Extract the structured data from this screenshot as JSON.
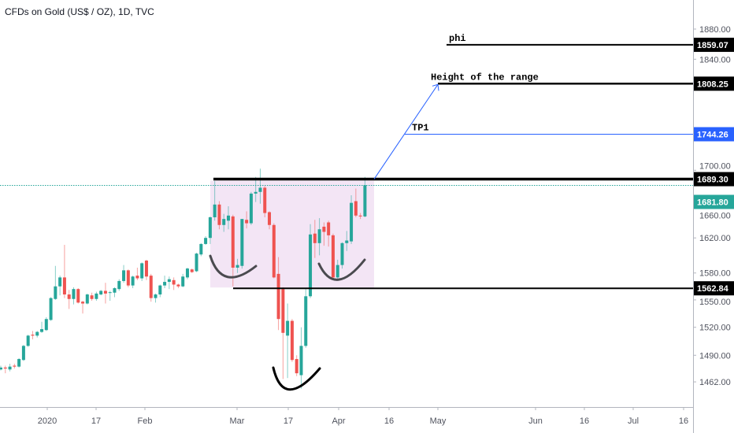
{
  "header": {
    "title": "CFDs on Gold (US$ / OZ), 1D, TVC"
  },
  "colors": {
    "up": "#26a69a",
    "down": "#ef5350",
    "tp1": "#2962ff",
    "range_box": "#f3e5f5",
    "current_price": "#26a69a",
    "level": "#000000",
    "arc_gray": "#4a4a4f"
  },
  "chart_data": {
    "type": "candlestick",
    "title": "CFDs on Gold (US$ / OZ), 1D, TVC",
    "y_scale": "log",
    "ylim": [
      1440,
      1900
    ],
    "y_ticks": [
      "1880.00",
      "1840.00",
      "1700.00",
      "1660.00",
      "1620.00",
      "1580.00",
      "1550.00",
      "1520.00",
      "1490.00",
      "1462.00"
    ],
    "x_ticks": [
      "2020",
      "17",
      "Feb",
      "Mar",
      "17",
      "Apr",
      "16",
      "May",
      "Jun",
      "16",
      "Jul",
      "16"
    ],
    "ohlc": [
      [
        1475,
        1479,
        1474,
        1477
      ],
      [
        1477,
        1479,
        1471,
        1476
      ],
      [
        1475,
        1481,
        1473,
        1478
      ],
      [
        1479,
        1481,
        1476,
        1478
      ],
      [
        1478,
        1487,
        1477,
        1486
      ],
      [
        1485,
        1501,
        1484,
        1500
      ],
      [
        1500,
        1512,
        1499,
        1511
      ],
      [
        1512,
        1516,
        1507,
        1511
      ],
      [
        1511,
        1516,
        1509,
        1515
      ],
      [
        1515,
        1526,
        1514,
        1518
      ],
      [
        1517,
        1531,
        1516,
        1529
      ],
      [
        1528,
        1553,
        1527,
        1552
      ],
      [
        1551,
        1588,
        1550,
        1565
      ],
      [
        1565,
        1577,
        1555,
        1575
      ],
      [
        1575,
        1612,
        1552,
        1556
      ],
      [
        1556,
        1561,
        1540,
        1551
      ],
      [
        1551,
        1564,
        1545,
        1562
      ],
      [
        1562,
        1563,
        1546,
        1547
      ],
      [
        1548,
        1549,
        1535,
        1546
      ],
      [
        1546,
        1557,
        1545,
        1556
      ],
      [
        1555,
        1558,
        1549,
        1551
      ],
      [
        1551,
        1559,
        1549,
        1557
      ],
      [
        1556,
        1561,
        1555,
        1560
      ],
      [
        1560,
        1569,
        1546,
        1557
      ],
      [
        1558,
        1560,
        1549,
        1558.5
      ],
      [
        1558,
        1564,
        1553,
        1563
      ],
      [
        1562,
        1573,
        1560,
        1571
      ],
      [
        1571,
        1589,
        1569,
        1583
      ],
      [
        1583,
        1584,
        1564,
        1566
      ],
      [
        1566,
        1577,
        1563,
        1576
      ],
      [
        1577,
        1586,
        1572,
        1574
      ],
      [
        1574,
        1592,
        1571,
        1591
      ],
      [
        1594,
        1595,
        1572,
        1576
      ],
      [
        1577,
        1579,
        1548,
        1552
      ],
      [
        1552,
        1557,
        1547,
        1556
      ],
      [
        1556,
        1567,
        1553,
        1566
      ],
      [
        1566,
        1577,
        1563,
        1570
      ],
      [
        1570,
        1576,
        1562,
        1573
      ],
      [
        1572,
        1575,
        1561,
        1567
      ],
      [
        1567,
        1568,
        1563,
        1565
      ],
      [
        1565,
        1579,
        1564,
        1576
      ],
      [
        1575,
        1586,
        1573,
        1585
      ],
      [
        1584,
        1585,
        1580,
        1581
      ],
      [
        1582,
        1603,
        1581,
        1602
      ],
      [
        1601,
        1614,
        1599,
        1613
      ],
      [
        1613,
        1622,
        1612,
        1620
      ],
      [
        1620,
        1645,
        1613,
        1644
      ],
      [
        1644,
        1687,
        1640,
        1659
      ],
      [
        1659,
        1663,
        1630,
        1635
      ],
      [
        1635,
        1648,
        1627,
        1642
      ],
      [
        1640,
        1657,
        1630,
        1646
      ],
      [
        1645,
        1647,
        1565,
        1586
      ],
      [
        1586,
        1596,
        1580,
        1589
      ],
      [
        1588,
        1642,
        1585,
        1642
      ],
      [
        1641,
        1651,
        1631,
        1637
      ],
      [
        1637,
        1674,
        1635,
        1672
      ],
      [
        1672,
        1692,
        1662,
        1674
      ],
      [
        1674,
        1702,
        1660,
        1679
      ],
      [
        1679,
        1681,
        1644,
        1649
      ],
      [
        1650,
        1651,
        1630,
        1635
      ],
      [
        1635,
        1637,
        1574,
        1575
      ],
      [
        1579,
        1598,
        1517,
        1529
      ],
      [
        1562,
        1564,
        1465,
        1514
      ],
      [
        1511,
        1546,
        1466,
        1527
      ],
      [
        1527,
        1529,
        1483,
        1485
      ],
      [
        1486,
        1490,
        1468,
        1471
      ],
      [
        1469,
        1520,
        1455,
        1500
      ],
      [
        1500,
        1562,
        1498,
        1554
      ],
      [
        1554,
        1636,
        1552,
        1624
      ],
      [
        1625,
        1641,
        1597,
        1614
      ],
      [
        1614,
        1643,
        1600,
        1630
      ],
      [
        1633,
        1638,
        1611,
        1627
      ],
      [
        1638,
        1640,
        1610,
        1623
      ],
      [
        1623,
        1625,
        1572,
        1575
      ],
      [
        1575,
        1595,
        1572,
        1589
      ],
      [
        1589,
        1615,
        1585,
        1614
      ],
      [
        1614,
        1628,
        1605,
        1617
      ],
      [
        1616,
        1670,
        1613,
        1661
      ],
      [
        1663,
        1678,
        1644,
        1646
      ],
      [
        1646,
        1649,
        1642,
        1645
      ],
      [
        1645,
        1692,
        1644,
        1682
      ]
    ],
    "last_price": "1681.80",
    "levels": [
      {
        "name": "phi",
        "label": "phi",
        "price": "1859.07",
        "color": "#000000"
      },
      {
        "name": "height",
        "label": "Height of the range",
        "price": "1808.25",
        "color": "#000000"
      },
      {
        "name": "tp1",
        "label": "TP1",
        "price": "1744.26",
        "color": "#2962ff"
      },
      {
        "name": "range-top",
        "label": "",
        "price": "1689.30",
        "color": "#000000"
      },
      {
        "name": "range-bottom",
        "label": "",
        "price": "1562.84",
        "color": "#000000"
      }
    ]
  }
}
